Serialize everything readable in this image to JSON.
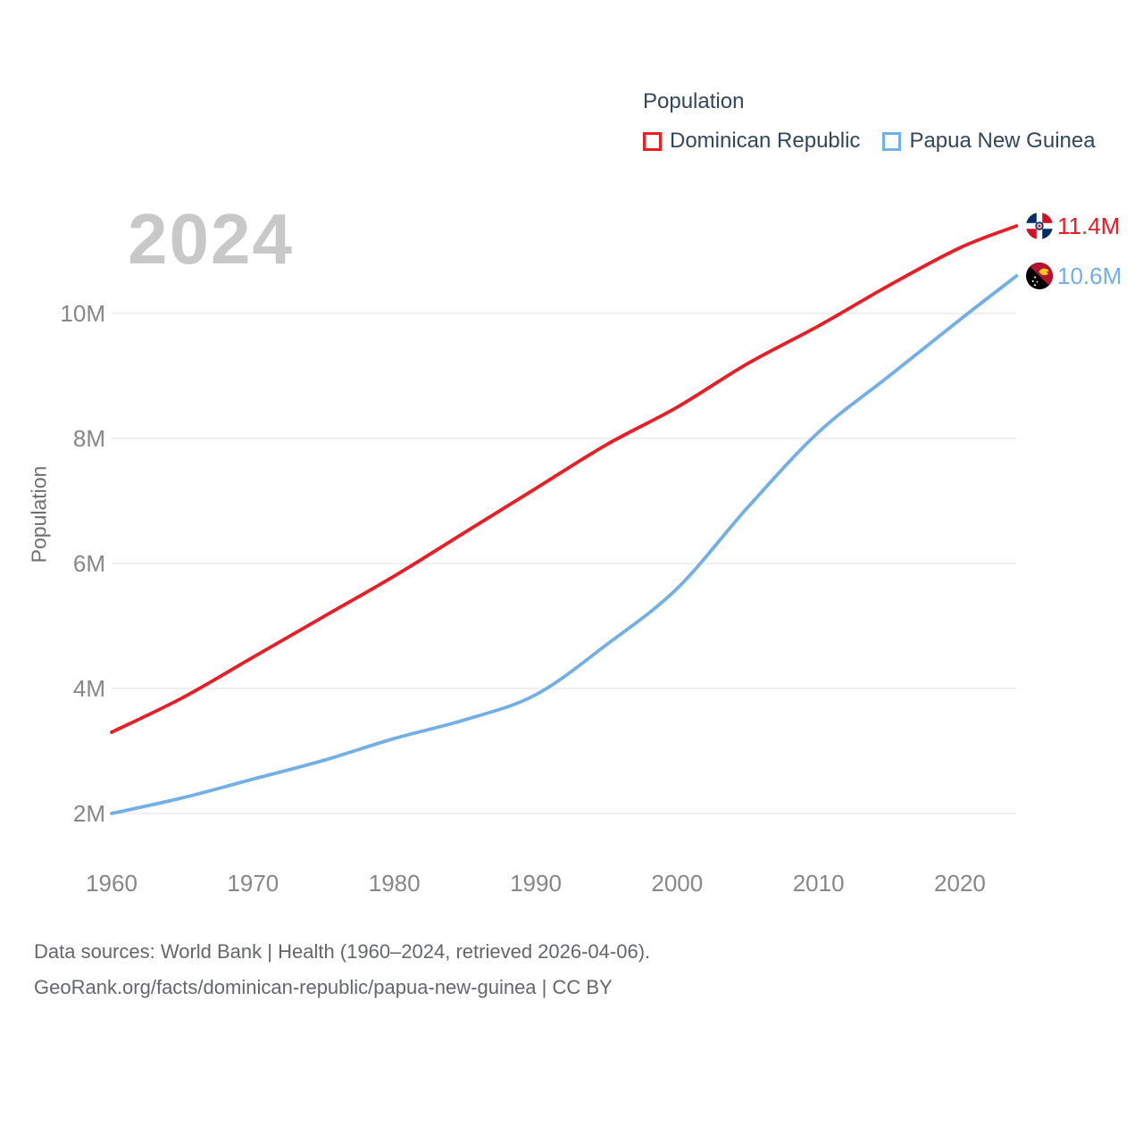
{
  "legend": {
    "title": "Population",
    "items": [
      {
        "label": "Dominican Republic",
        "color": "#ed1c24"
      },
      {
        "label": "Papua New Guinea",
        "color": "#73afe7"
      }
    ]
  },
  "watermark": "2024",
  "y_axis_title": "Population",
  "chart_data": {
    "type": "line",
    "title": "Population",
    "ylabel": "Population",
    "xlabel": "",
    "x": [
      1960,
      1965,
      1970,
      1975,
      1980,
      1985,
      1990,
      1995,
      2000,
      2005,
      2010,
      2015,
      2020,
      2024
    ],
    "series": [
      {
        "name": "Dominican Republic",
        "color": "#ed1c24",
        "values": [
          3.3,
          3.85,
          4.5,
          5.15,
          5.8,
          6.5,
          7.2,
          7.9,
          8.5,
          9.2,
          9.8,
          10.45,
          11.05,
          11.4
        ],
        "end_label": "11.4M",
        "flag": "dominican-republic"
      },
      {
        "name": "Papua New Guinea",
        "color": "#73afe7",
        "values": [
          2.0,
          2.25,
          2.55,
          2.85,
          3.2,
          3.5,
          3.9,
          4.7,
          5.6,
          6.9,
          8.1,
          9.0,
          9.9,
          10.6
        ],
        "end_label": "10.6M",
        "flag": "papua-new-guinea"
      }
    ],
    "xticks": [
      "1960",
      "1970",
      "1980",
      "1990",
      "2000",
      "2010",
      "2020"
    ],
    "yticks": [
      {
        "value": 2,
        "label": "2M"
      },
      {
        "value": 4,
        "label": "4M"
      },
      {
        "value": 6,
        "label": "6M"
      },
      {
        "value": 8,
        "label": "8M"
      },
      {
        "value": 10,
        "label": "10M"
      }
    ],
    "xlim": [
      1960,
      2024
    ],
    "ylim": [
      2,
      11.4
    ],
    "grid": true,
    "legend_position": "top-right"
  },
  "footer": {
    "line1": "Data sources: World Bank | Health (1960–2024, retrieved 2026-04-06).",
    "line2": "GeoRank.org/facts/dominican-republic/papua-new-guinea | CC BY"
  }
}
